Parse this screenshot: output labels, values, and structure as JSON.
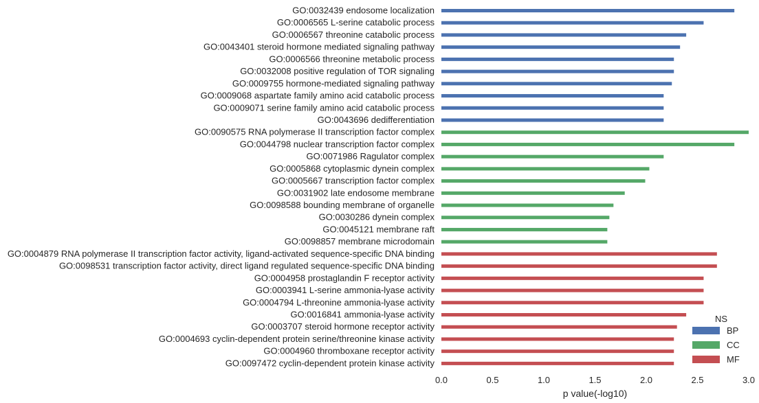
{
  "chart_data": {
    "type": "bar",
    "orientation": "horizontal",
    "categories": [
      "GO:0032439 endosome localization",
      "GO:0006565 L-serine catabolic process",
      "GO:0006567 threonine catabolic process",
      "GO:0043401 steroid hormone mediated signaling pathway",
      "GO:0006566 threonine metabolic process",
      "GO:0032008 positive regulation of TOR signaling",
      "GO:0009755 hormone-mediated signaling pathway",
      "GO:0009068 aspartate family amino acid catabolic process",
      "GO:0009071 serine family amino acid catabolic process",
      "GO:0043696 dedifferentiation",
      "GO:0090575 RNA polymerase II transcription factor complex",
      "GO:0044798 nuclear transcription factor complex",
      "GO:0071986 Ragulator complex",
      "GO:0005868 cytoplasmic dynein complex",
      "GO:0005667 transcription factor complex",
      "GO:0031902 late endosome membrane",
      "GO:0098588 bounding membrane of organelle",
      "GO:0030286 dynein complex",
      "GO:0045121 membrane raft",
      "GO:0098857 membrane microdomain",
      "GO:0004879 RNA polymerase II transcription factor activity, ligand-activated sequence-specific DNA binding",
      "GO:0098531 transcription factor activity, direct ligand regulated sequence-specific DNA binding",
      "GO:0004958 prostaglandin F receptor activity",
      "GO:0003941 L-serine ammonia-lyase activity",
      "GO:0004794 L-threonine ammonia-lyase activity",
      "GO:0016841 ammonia-lyase activity",
      "GO:0003707 steroid hormone receptor activity",
      "GO:0004693 cyclin-dependent protein serine/threonine kinase activity",
      "GO:0004960 thromboxane receptor activity",
      "GO:0097472 cyclin-dependent protein kinase activity"
    ],
    "values": [
      2.86,
      2.56,
      2.39,
      2.33,
      2.27,
      2.27,
      2.25,
      2.17,
      2.17,
      2.17,
      3.0,
      2.86,
      2.17,
      2.03,
      1.99,
      1.79,
      1.68,
      1.64,
      1.62,
      1.62,
      2.69,
      2.69,
      2.56,
      2.56,
      2.56,
      2.39,
      2.3,
      2.27,
      2.27,
      2.27
    ],
    "groups": [
      "BP",
      "BP",
      "BP",
      "BP",
      "BP",
      "BP",
      "BP",
      "BP",
      "BP",
      "BP",
      "CC",
      "CC",
      "CC",
      "CC",
      "CC",
      "CC",
      "CC",
      "CC",
      "CC",
      "CC",
      "MF",
      "MF",
      "MF",
      "MF",
      "MF",
      "MF",
      "MF",
      "MF",
      "MF",
      "MF"
    ],
    "series": [
      {
        "name": "BP",
        "color": "#4c72b0"
      },
      {
        "name": "CC",
        "color": "#55a868"
      },
      {
        "name": "MF",
        "color": "#c44e52"
      }
    ],
    "xlabel": "p value(-log10)",
    "ylabel": "",
    "xlim": [
      0,
      3.0
    ],
    "xticks": [
      0.0,
      0.5,
      1.0,
      1.5,
      2.0,
      2.5,
      3.0
    ],
    "xtick_labels": [
      "0.0",
      "0.5",
      "1.0",
      "1.5",
      "2.0",
      "2.5",
      "3.0"
    ],
    "grid": false,
    "legend": {
      "title": "NS",
      "placement": "lower-right"
    }
  }
}
